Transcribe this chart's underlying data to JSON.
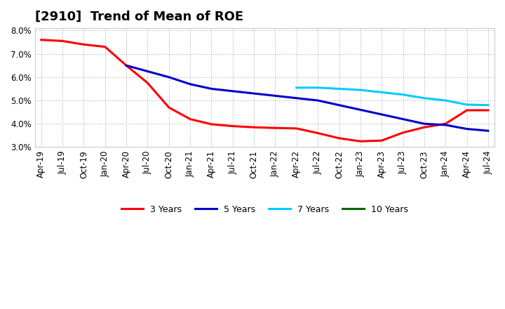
{
  "title": "[2910]  Trend of Mean of ROE",
  "ylim": [
    0.03,
    0.081
  ],
  "yticks": [
    0.03,
    0.04,
    0.05,
    0.06,
    0.07,
    0.08
  ],
  "background_color": "#ffffff",
  "grid_color": "#b0b0b0",
  "xtick_labels": [
    "Apr-19",
    "Jul-19",
    "Oct-19",
    "Jan-20",
    "Apr-20",
    "Jul-20",
    "Oct-20",
    "Jan-21",
    "Apr-21",
    "Jul-21",
    "Oct-21",
    "Jan-22",
    "Apr-22",
    "Jul-22",
    "Oct-22",
    "Jan-23",
    "Apr-23",
    "Jul-23",
    "Oct-23",
    "Jan-24",
    "Apr-24",
    "Jul-24"
  ],
  "series": [
    {
      "label": "3 Years",
      "color": "#ff0000",
      "indices": [
        0,
        1,
        2,
        3,
        4,
        5,
        6,
        7,
        8,
        9,
        10,
        11,
        12,
        13,
        14,
        15,
        16,
        17,
        18,
        19,
        20,
        21
      ],
      "values": [
        0.076,
        0.0755,
        0.074,
        0.073,
        0.065,
        0.0575,
        0.047,
        0.042,
        0.0398,
        0.039,
        0.0385,
        0.0382,
        0.038,
        0.036,
        0.0338,
        0.0325,
        0.0328,
        0.0362,
        0.0385,
        0.04,
        0.0458,
        0.0458
      ]
    },
    {
      "label": "5 Years",
      "color": "#0000cc",
      "indices": [
        4,
        5,
        6,
        7,
        8,
        9,
        10,
        11,
        12,
        13,
        14,
        15,
        16,
        17,
        18,
        19,
        20,
        21
      ],
      "values": [
        0.065,
        0.0625,
        0.06,
        0.057,
        0.055,
        0.054,
        0.053,
        0.052,
        0.051,
        0.05,
        0.048,
        0.046,
        0.044,
        0.042,
        0.04,
        0.0395,
        0.0378,
        0.037
      ]
    },
    {
      "label": "7 Years",
      "color": "#00ccff",
      "indices": [
        12,
        13,
        14,
        15,
        16,
        17,
        18,
        19,
        20,
        21
      ],
      "values": [
        0.0555,
        0.0555,
        0.055,
        0.0545,
        0.0535,
        0.0525,
        0.051,
        0.05,
        0.0482,
        0.048
      ]
    },
    {
      "label": "10 Years",
      "color": "#006600",
      "indices": [],
      "values": []
    }
  ],
  "title_fontsize": 13,
  "tick_fontsize": 8.5,
  "legend_fontsize": 9,
  "linewidth": 2.2
}
